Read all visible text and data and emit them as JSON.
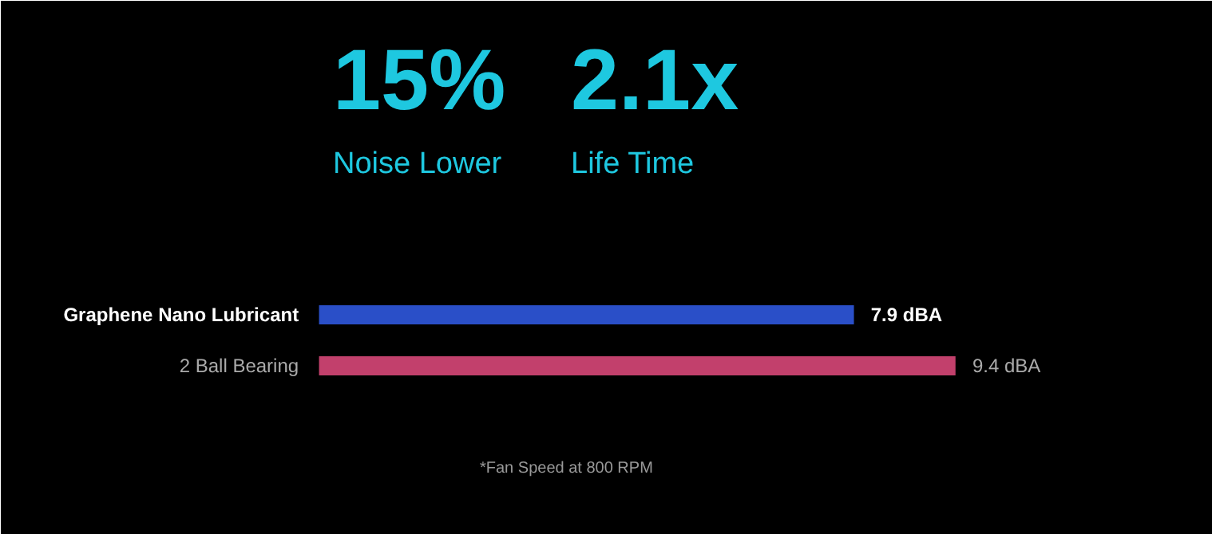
{
  "chart_data": {
    "type": "bar",
    "orientation": "horizontal",
    "categories": [
      "Graphene Nano Lubricant",
      "2 Ball Bearing"
    ],
    "values": [
      7.9,
      9.4
    ],
    "colors": [
      "#2a4fc8",
      "#c2406c"
    ],
    "data_labels": true,
    "value_labels": [
      "7.9 dBA",
      "9.4 dBA"
    ],
    "annotations": [
      "15%",
      "Noise Lower",
      "2.1x",
      "Life Time",
      "*Fan Speed at 800 RPM"
    ],
    "grid": false
  }
}
